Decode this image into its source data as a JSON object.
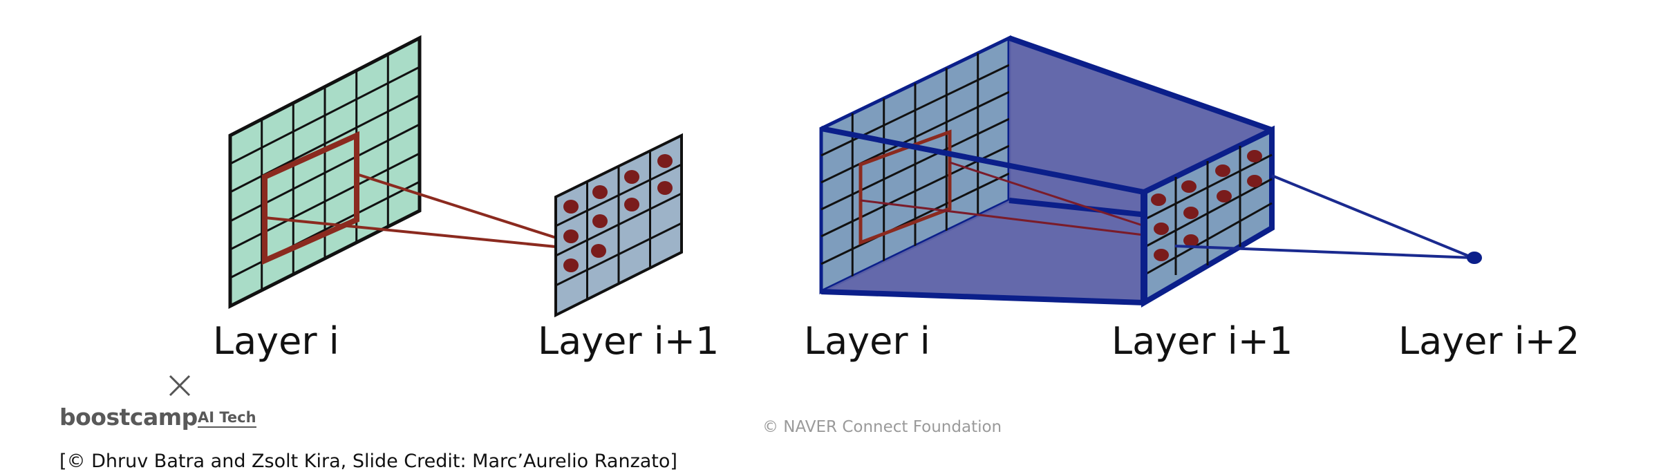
{
  "diagram": {
    "left_labels": [
      "Layer i",
      "Layer i+1"
    ],
    "right_labels": [
      "Layer i",
      "Layer i+1",
      "Layer i+2"
    ]
  },
  "footer": {
    "logo_text": "boostcamp",
    "logo_sub": "AI Tech",
    "copyright": "© NAVER Connect Foundation",
    "credit": "[© Dhruv Batra and Zsolt Kira, Slide Credit: Marc’Aurelio Ranzato]"
  },
  "colors": {
    "green_layer": "#a9dcc7",
    "blue_grey_layer": "#9db3c8",
    "navy": "#0b1f8a",
    "volume_fill": "#5c61a6",
    "receptive_field": "#8b2a1f",
    "dot": "#7a1c1c"
  }
}
